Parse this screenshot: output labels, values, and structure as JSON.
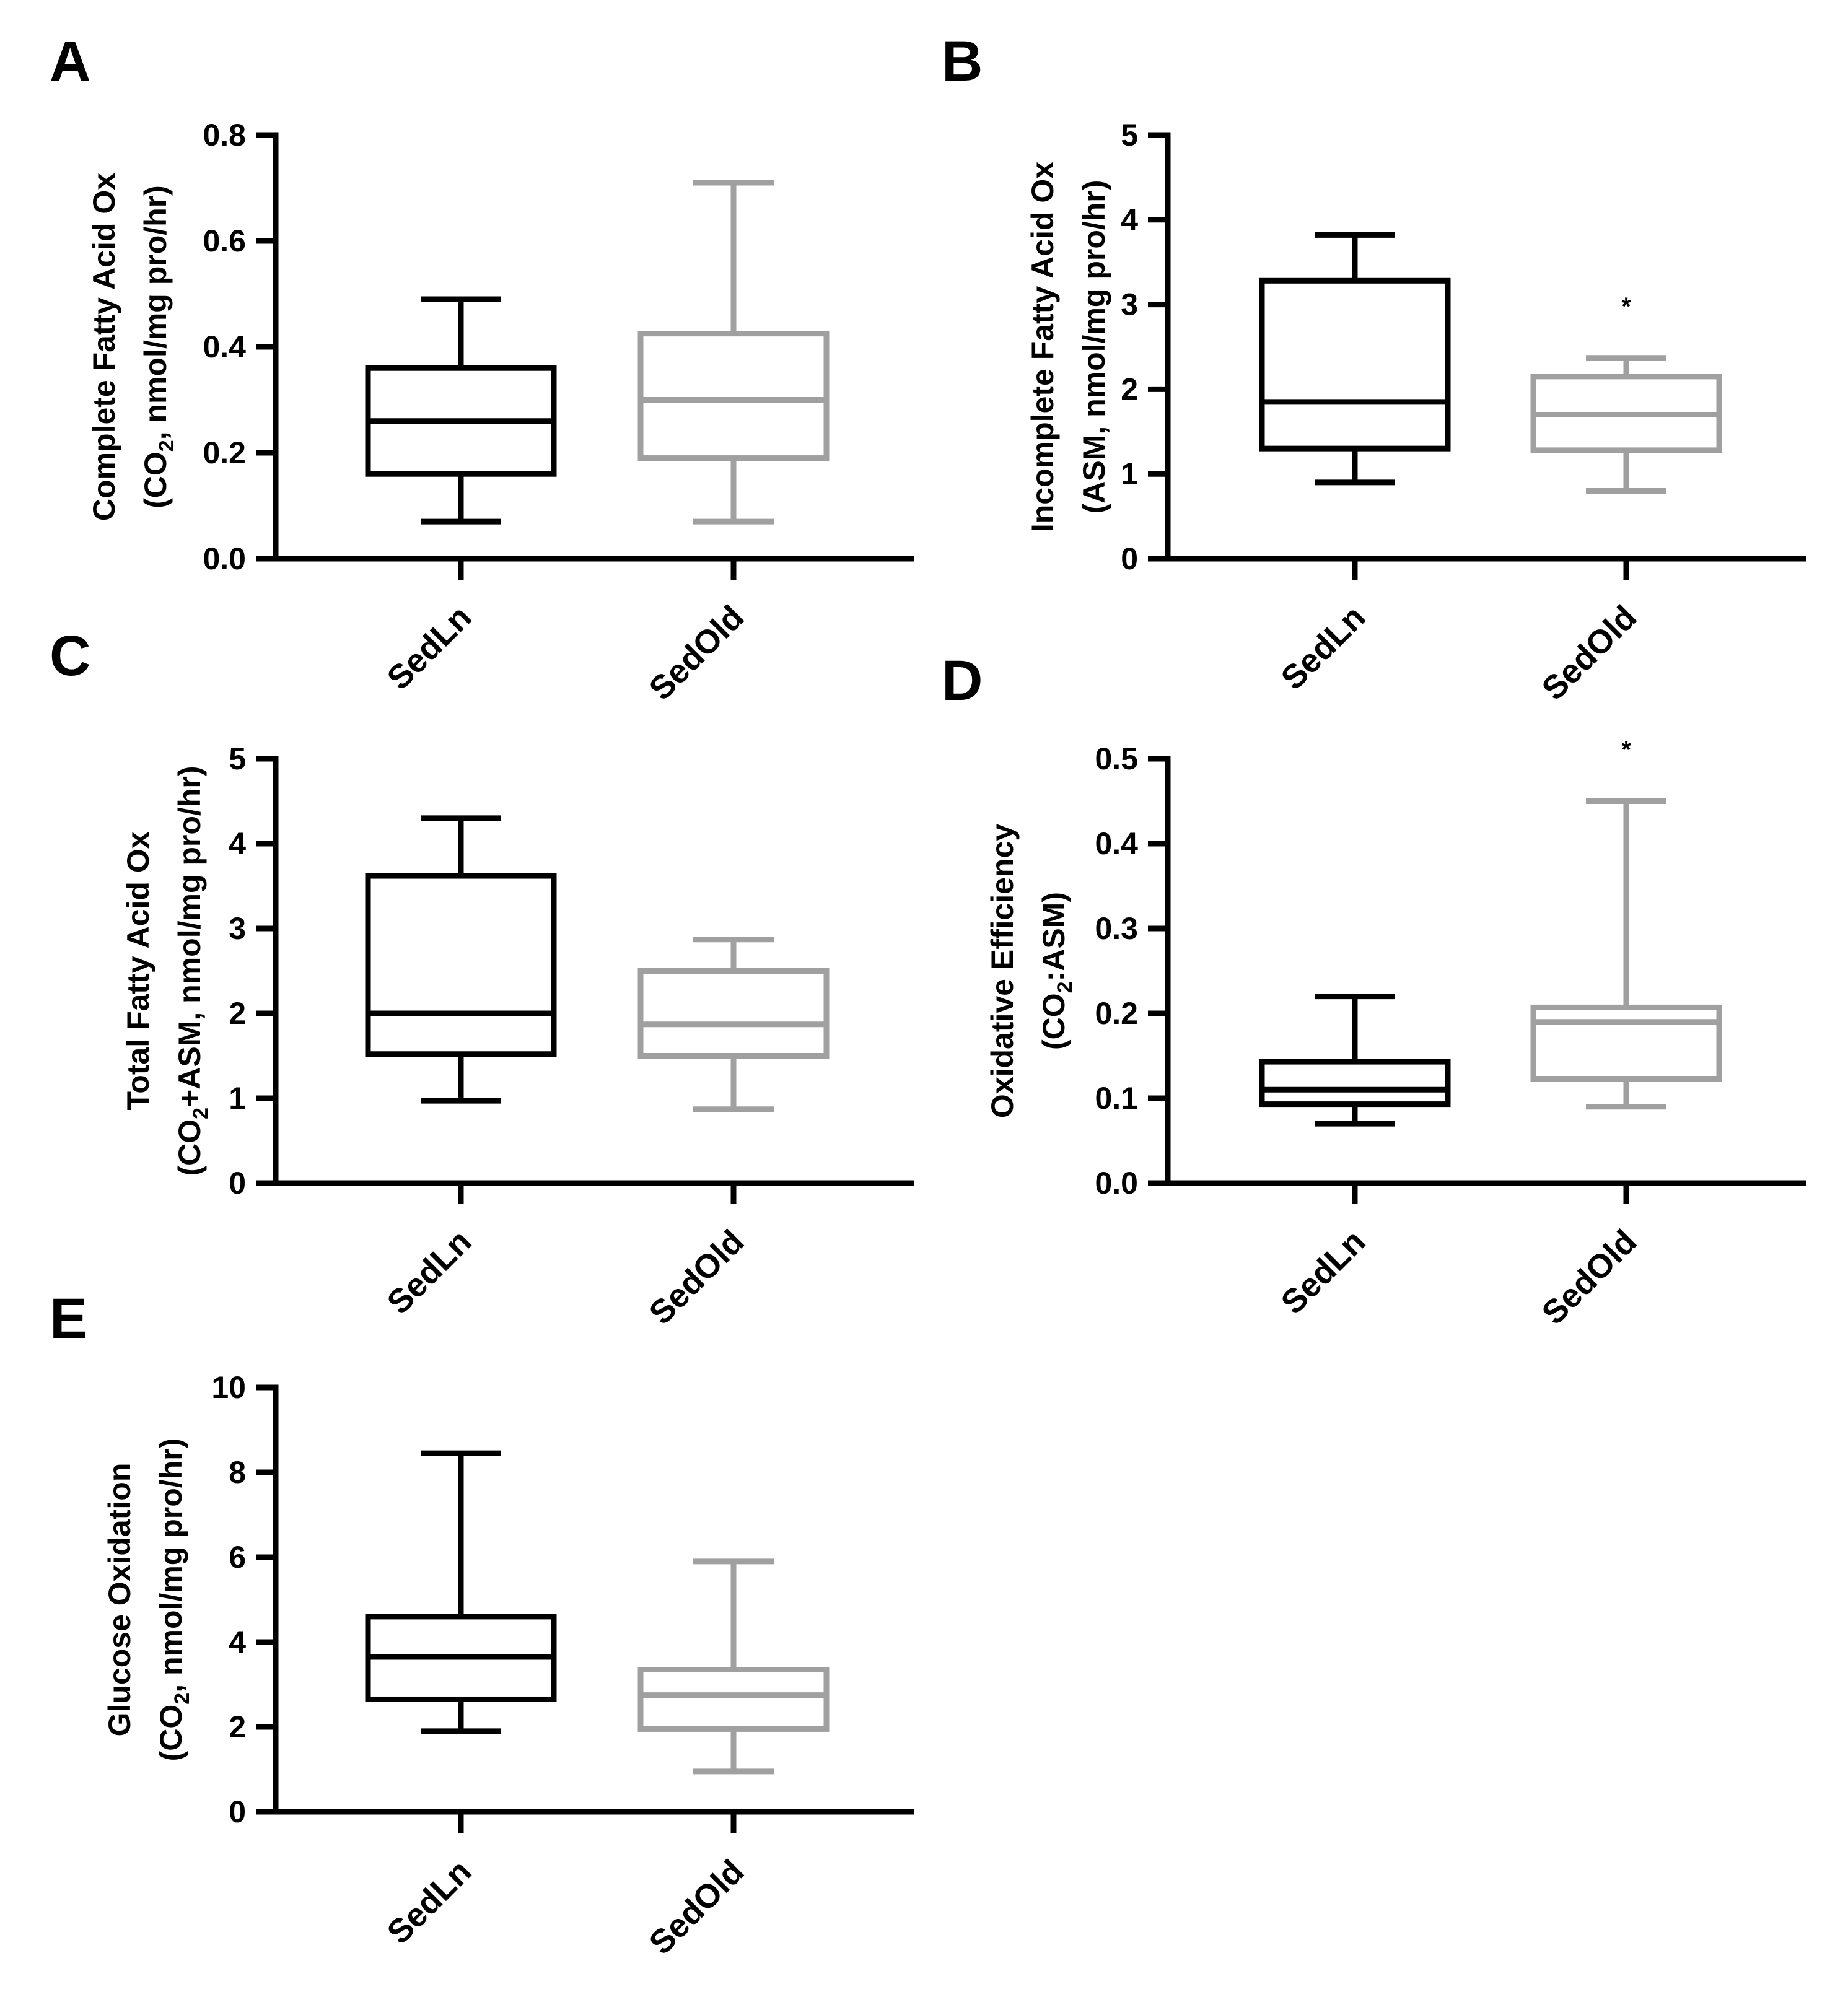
{
  "figure": {
    "colors": {
      "axis": "#000000",
      "SedLn": "#000000",
      "SedOld": "#a0a0a0"
    }
  },
  "chart_data": [
    {
      "panel": "A",
      "type": "box",
      "ylabel_line1": "Complete Fatty Acid Ox",
      "ylabel_line2": [
        "(CO",
        "2",
        ", nmol/mg pro/hr)"
      ],
      "ylim": [
        0,
        0.8
      ],
      "yticks": [
        0,
        0.2,
        0.4,
        0.6,
        0.8
      ],
      "ytick_labels": [
        "0.0",
        "0.2",
        "0.4",
        "0.6",
        "0.8"
      ],
      "categories": [
        "SedLn",
        "SedOld"
      ],
      "boxes": [
        {
          "group": "SedLn",
          "min": 0.07,
          "q1": 0.16,
          "median": 0.26,
          "q3": 0.36,
          "max": 0.49,
          "sig": ""
        },
        {
          "group": "SedOld",
          "min": 0.07,
          "q1": 0.19,
          "median": 0.3,
          "q3": 0.425,
          "max": 0.71,
          "sig": ""
        }
      ]
    },
    {
      "panel": "B",
      "type": "box",
      "ylabel_line1": "Incomplete Fatty Acid Ox",
      "ylabel_line2": [
        "(ASM, nmol/mg pro/hr)",
        "",
        ""
      ],
      "ylim": [
        0,
        5
      ],
      "yticks": [
        0,
        1,
        2,
        3,
        4,
        5
      ],
      "ytick_labels": [
        "0",
        "1",
        "2",
        "3",
        "4",
        "5"
      ],
      "categories": [
        "SedLn",
        "SedOld"
      ],
      "boxes": [
        {
          "group": "SedLn",
          "min": 0.9,
          "q1": 1.3,
          "median": 1.85,
          "q3": 3.28,
          "max": 3.82,
          "sig": ""
        },
        {
          "group": "SedOld",
          "min": 0.8,
          "q1": 1.28,
          "median": 1.7,
          "q3": 2.15,
          "max": 2.37,
          "sig": "*"
        }
      ]
    },
    {
      "panel": "C",
      "type": "box",
      "ylabel_line1": "Total Fatty Acid Ox",
      "ylabel_line2": [
        "(CO",
        "2",
        "+ASM, nmol/mg pro/hr)"
      ],
      "ylim": [
        0,
        5
      ],
      "yticks": [
        0,
        1,
        2,
        3,
        4,
        5
      ],
      "ytick_labels": [
        "0",
        "1",
        "2",
        "3",
        "4",
        "5"
      ],
      "categories": [
        "SedLn",
        "SedOld"
      ],
      "boxes": [
        {
          "group": "SedLn",
          "min": 0.97,
          "q1": 1.52,
          "median": 2.0,
          "q3": 3.62,
          "max": 4.3,
          "sig": ""
        },
        {
          "group": "SedOld",
          "min": 0.87,
          "q1": 1.5,
          "median": 1.87,
          "q3": 2.5,
          "max": 2.87,
          "sig": ""
        }
      ]
    },
    {
      "panel": "D",
      "type": "box",
      "ylabel_line1": "Oxidative Efficiency",
      "ylabel_line2": [
        "(CO",
        "2",
        ":ASM)"
      ],
      "ylim": [
        0,
        0.5
      ],
      "yticks": [
        0,
        0.1,
        0.2,
        0.3,
        0.4,
        0.5
      ],
      "ytick_labels": [
        "0.0",
        "0.1",
        "0.2",
        "0.3",
        "0.4",
        "0.5"
      ],
      "categories": [
        "SedLn",
        "SedOld"
      ],
      "boxes": [
        {
          "group": "SedLn",
          "min": 0.07,
          "q1": 0.093,
          "median": 0.11,
          "q3": 0.143,
          "max": 0.22,
          "sig": ""
        },
        {
          "group": "SedOld",
          "min": 0.09,
          "q1": 0.123,
          "median": 0.19,
          "q3": 0.207,
          "max": 0.45,
          "sig": "*"
        }
      ]
    },
    {
      "panel": "E",
      "type": "box",
      "ylabel_line1": "Glucose Oxidation",
      "ylabel_line2": [
        "(CO",
        "2",
        ", nmol/mg pro/hr)"
      ],
      "ylim": [
        0,
        10
      ],
      "yticks": [
        0,
        2,
        4,
        6,
        8,
        10
      ],
      "ytick_labels": [
        "0",
        "2",
        "4",
        "6",
        "8",
        "10"
      ],
      "categories": [
        "SedLn",
        "SedOld"
      ],
      "boxes": [
        {
          "group": "SedLn",
          "min": 1.9,
          "q1": 2.65,
          "median": 3.65,
          "q3": 4.6,
          "max": 8.45,
          "sig": ""
        },
        {
          "group": "SedOld",
          "min": 0.95,
          "q1": 1.95,
          "median": 2.75,
          "q3": 3.35,
          "max": 5.9,
          "sig": ""
        }
      ]
    }
  ]
}
